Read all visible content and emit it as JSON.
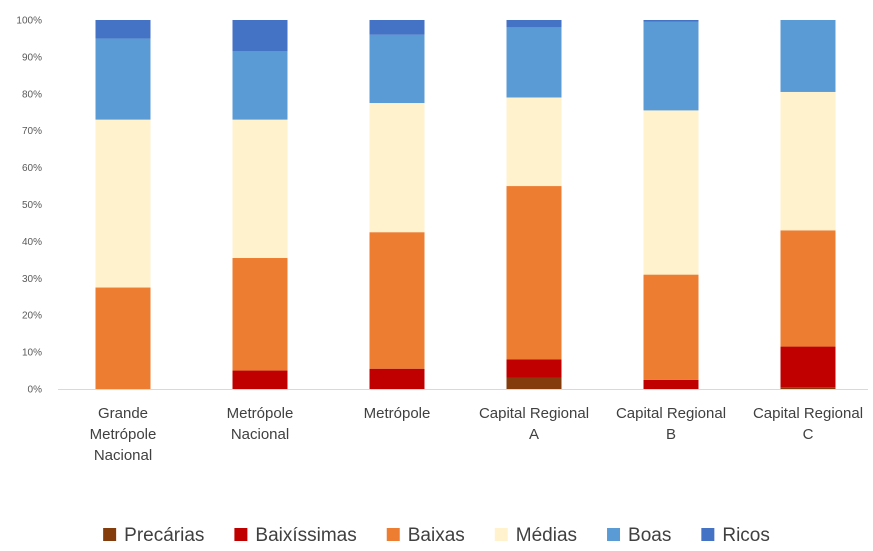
{
  "chart_data": {
    "type": "bar",
    "stacked": true,
    "normalized_percent": true,
    "categories": [
      [
        "Grande",
        "Metrópole",
        "Nacional"
      ],
      [
        "Metrópole",
        "Nacional"
      ],
      [
        "Metrópole"
      ],
      [
        "Capital Regional",
        "A"
      ],
      [
        "Capital Regional",
        "B"
      ],
      [
        "Capital Regional",
        "C"
      ]
    ],
    "series": [
      {
        "name": "Precárias",
        "color": "#843C0C",
        "values": [
          0,
          0,
          0,
          3,
          0,
          0.5
        ]
      },
      {
        "name": "Baixíssimas",
        "color": "#C00000",
        "values": [
          0,
          5,
          5.5,
          5,
          2.5,
          11
        ]
      },
      {
        "name": "Baixas",
        "color": "#ED7D31",
        "values": [
          27.5,
          30.5,
          37,
          47,
          28.5,
          31.5
        ]
      },
      {
        "name": "Médias",
        "color": "#FFF2CC",
        "values": [
          45.5,
          37.5,
          35,
          24,
          44.5,
          37.5
        ]
      },
      {
        "name": "Boas",
        "color": "#5B9BD5",
        "values": [
          22,
          18.5,
          18.5,
          19,
          24,
          19.5
        ]
      },
      {
        "name": "Ricos",
        "color": "#4472C4",
        "values": [
          5,
          8.5,
          4,
          2,
          0.5,
          0
        ]
      }
    ],
    "y_ticks": [
      "0%",
      "10%",
      "20%",
      "30%",
      "40%",
      "50%",
      "60%",
      "70%",
      "80%",
      "90%",
      "100%"
    ],
    "ylim": [
      0,
      100
    ],
    "grid": false,
    "legend_position": "bottom"
  }
}
